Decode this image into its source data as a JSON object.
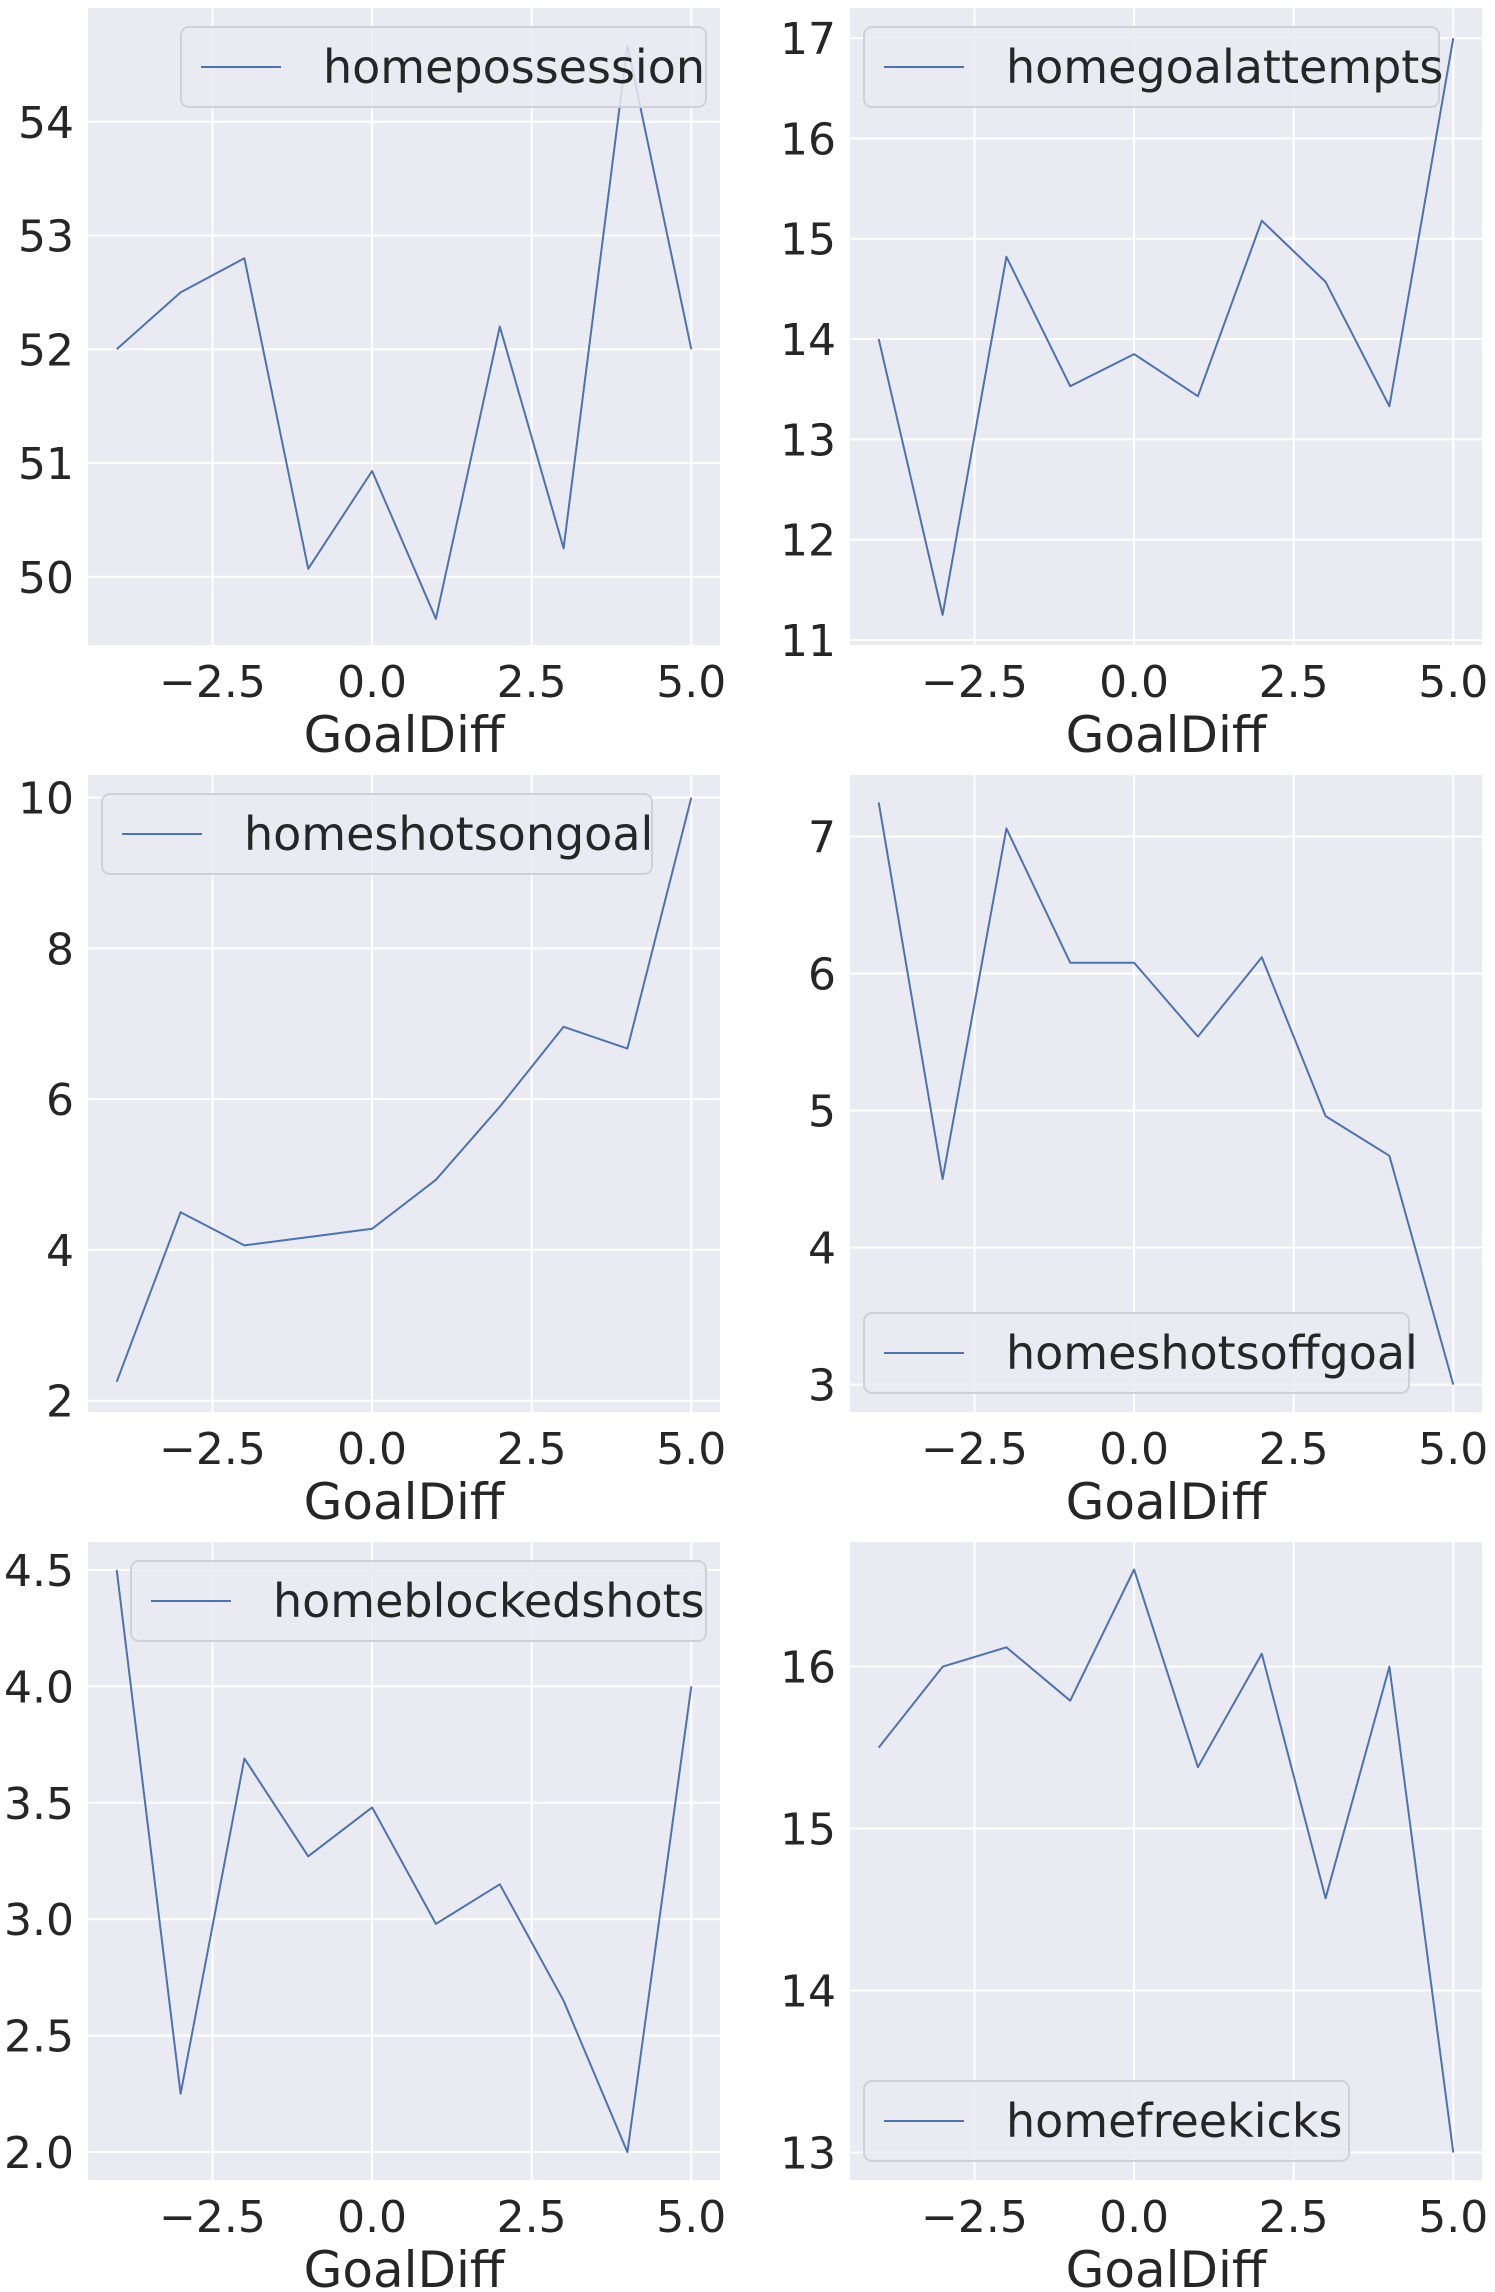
{
  "figure": {
    "grid": true,
    "background": "#eaeaf2",
    "grid_color": "#ffffff",
    "line_color": "#4c72b0"
  },
  "chart_data": [
    {
      "type": "line",
      "xlabel": "GoalDiff",
      "ylabel": "",
      "xlim": [
        -4.45,
        5.45
      ],
      "ylim": [
        49.4,
        55.0
      ],
      "xticks": [
        -2.5,
        0.0,
        2.5,
        5.0
      ],
      "xtick_labels": [
        "−2.5",
        "0.0",
        "2.5",
        "5.0"
      ],
      "yticks": [
        50,
        51,
        52,
        53,
        54
      ],
      "ytick_labels": [
        "50",
        "51",
        "52",
        "53",
        "54"
      ],
      "legend_placement": "upper right",
      "series": [
        {
          "name": "homepossession",
          "x": [
            -4,
            -3,
            -2,
            -1,
            0,
            1,
            2,
            3,
            4,
            5
          ],
          "y": [
            52.0,
            52.5,
            52.8,
            50.07,
            50.93,
            49.63,
            52.2,
            50.25,
            54.67,
            52.0
          ]
        }
      ]
    },
    {
      "type": "line",
      "xlabel": "GoalDiff",
      "ylabel": "",
      "xlim": [
        -4.45,
        5.45
      ],
      "ylim": [
        10.95,
        17.3
      ],
      "xticks": [
        -2.5,
        0.0,
        2.5,
        5.0
      ],
      "xtick_labels": [
        "−2.5",
        "0.0",
        "2.5",
        "5.0"
      ],
      "yticks": [
        11,
        12,
        13,
        14,
        15,
        16,
        17
      ],
      "ytick_labels": [
        "11",
        "12",
        "13",
        "14",
        "15",
        "16",
        "17"
      ],
      "legend_placement": "upper left",
      "series": [
        {
          "name": "homegoalattempts",
          "x": [
            -4,
            -3,
            -2,
            -1,
            0,
            1,
            2,
            3,
            4,
            5
          ],
          "y": [
            14.0,
            11.25,
            14.82,
            13.53,
            13.85,
            13.43,
            15.18,
            14.57,
            13.33,
            17.0
          ]
        }
      ]
    },
    {
      "type": "line",
      "xlabel": "GoalDiff",
      "ylabel": "",
      "xlim": [
        -4.45,
        5.45
      ],
      "ylim": [
        1.85,
        10.3
      ],
      "xticks": [
        -2.5,
        0.0,
        2.5,
        5.0
      ],
      "xtick_labels": [
        "−2.5",
        "0.0",
        "2.5",
        "5.0"
      ],
      "yticks": [
        2,
        4,
        6,
        8,
        10
      ],
      "ytick_labels": [
        "2",
        "4",
        "6",
        "8",
        "10"
      ],
      "legend_placement": "upper left",
      "series": [
        {
          "name": "homeshotsongoal",
          "x": [
            -4,
            -3,
            -2,
            -1,
            0,
            1,
            2,
            3,
            4,
            5
          ],
          "y": [
            2.25,
            4.5,
            4.06,
            4.17,
            4.28,
            4.93,
            5.9,
            6.96,
            6.67,
            10.0
          ]
        }
      ]
    },
    {
      "type": "line",
      "xlabel": "GoalDiff",
      "ylabel": "",
      "xlim": [
        -4.45,
        5.45
      ],
      "ylim": [
        2.8,
        7.45
      ],
      "xticks": [
        -2.5,
        0.0,
        2.5,
        5.0
      ],
      "xtick_labels": [
        "−2.5",
        "0.0",
        "2.5",
        "5.0"
      ],
      "yticks": [
        3,
        4,
        5,
        6,
        7
      ],
      "ytick_labels": [
        "3",
        "4",
        "5",
        "6",
        "7"
      ],
      "legend_placement": "lower left",
      "series": [
        {
          "name": "homeshotsoffgoal",
          "x": [
            -4,
            -3,
            -2,
            -1,
            0,
            1,
            2,
            3,
            4,
            5
          ],
          "y": [
            7.25,
            4.5,
            7.06,
            6.08,
            6.08,
            5.54,
            6.12,
            4.96,
            4.67,
            3.0
          ]
        }
      ]
    },
    {
      "type": "line",
      "xlabel": "GoalDiff",
      "ylabel": "",
      "xlim": [
        -4.45,
        5.45
      ],
      "ylim": [
        1.88,
        4.62
      ],
      "xticks": [
        -2.5,
        0.0,
        2.5,
        5.0
      ],
      "xtick_labels": [
        "−2.5",
        "0.0",
        "2.5",
        "5.0"
      ],
      "yticks": [
        2.0,
        2.5,
        3.0,
        3.5,
        4.0,
        4.5
      ],
      "ytick_labels": [
        "2.0",
        "2.5",
        "3.0",
        "3.5",
        "4.0",
        "4.5"
      ],
      "legend_placement": "upper right",
      "series": [
        {
          "name": "homeblockedshots",
          "x": [
            -4,
            -3,
            -2,
            -1,
            0,
            1,
            2,
            3,
            4,
            5
          ],
          "y": [
            4.5,
            2.25,
            3.69,
            3.27,
            3.48,
            2.98,
            3.15,
            2.65,
            2.0,
            4.0
          ]
        }
      ]
    },
    {
      "type": "line",
      "xlabel": "GoalDiff",
      "ylabel": "",
      "xlim": [
        -4.45,
        5.45
      ],
      "ylim": [
        12.83,
        16.77
      ],
      "xticks": [
        -2.5,
        0.0,
        2.5,
        5.0
      ],
      "xtick_labels": [
        "−2.5",
        "0.0",
        "2.5",
        "5.0"
      ],
      "yticks": [
        13,
        14,
        15,
        16
      ],
      "ytick_labels": [
        "13",
        "14",
        "15",
        "16"
      ],
      "legend_placement": "lower left",
      "series": [
        {
          "name": "homefreekicks",
          "x": [
            -4,
            -3,
            -2,
            -1,
            0,
            1,
            2,
            3,
            4,
            5
          ],
          "y": [
            15.5,
            16.0,
            16.12,
            15.79,
            16.6,
            15.38,
            16.08,
            14.57,
            16.0,
            13.0
          ]
        }
      ]
    }
  ]
}
